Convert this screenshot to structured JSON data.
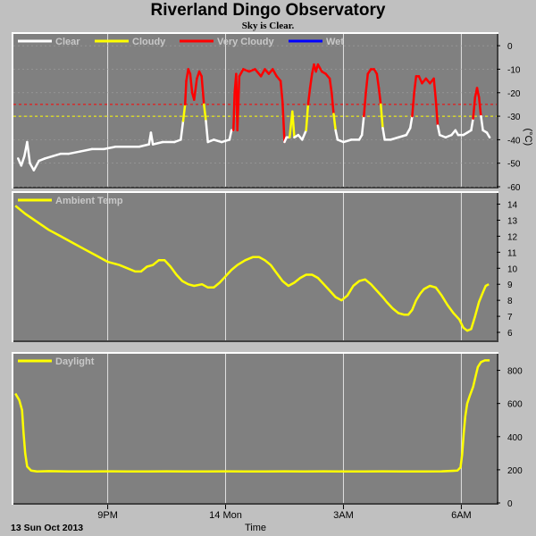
{
  "title": "Riverland Dingo Observatory",
  "subtitle": "Sky is Clear.",
  "colors": {
    "background": "#c0c0c0",
    "plot_background": "#808080",
    "grid": "#e0e0e0",
    "clear": "#ffffff",
    "cloudy": "#ffff00",
    "very_cloudy": "#ff0000",
    "wet": "#0000ff",
    "temperature": "#ffff00",
    "daylight": "#ffff00"
  },
  "x_axis": {
    "label": "Time",
    "date_label": "13 Sun Oct 2013",
    "range_hours": [
      18.6,
      30.9
    ],
    "ticks": [
      {
        "hour": 21,
        "label": "9PM"
      },
      {
        "hour": 24,
        "label": "14 Mon"
      },
      {
        "hour": 27,
        "label": "3AM"
      },
      {
        "hour": 30,
        "label": "6AM"
      }
    ]
  },
  "chart_data": [
    {
      "type": "line",
      "name": "sky",
      "unit": "(°C)",
      "ylim": [
        -60,
        5
      ],
      "yticks": [
        0,
        -10,
        -20,
        -30,
        -40,
        -50,
        -60
      ],
      "legend": [
        "Clear",
        "Cloudy",
        "Very Cloudy",
        "Wet"
      ],
      "thresholds": [
        {
          "value": -25,
          "color": "#ff0000"
        },
        {
          "value": -30,
          "color": "#ffff00"
        }
      ],
      "points": [
        [
          18.72,
          -48
        ],
        [
          18.8,
          -51
        ],
        [
          18.88,
          -47
        ],
        [
          18.95,
          -41
        ],
        [
          19.02,
          -50
        ],
        [
          19.12,
          -53
        ],
        [
          19.25,
          -49
        ],
        [
          19.4,
          -48
        ],
        [
          19.6,
          -47
        ],
        [
          19.8,
          -46
        ],
        [
          20.0,
          -46
        ],
        [
          20.3,
          -45
        ],
        [
          20.6,
          -44
        ],
        [
          20.9,
          -44
        ],
        [
          21.2,
          -43
        ],
        [
          21.5,
          -43
        ],
        [
          21.8,
          -43
        ],
        [
          22.05,
          -42
        ],
        [
          22.1,
          -37
        ],
        [
          22.15,
          -42
        ],
        [
          22.4,
          -41
        ],
        [
          22.7,
          -41
        ],
        [
          22.86,
          -40
        ],
        [
          22.92,
          -32
        ],
        [
          22.97,
          -25
        ],
        [
          23.0,
          -15
        ],
        [
          23.05,
          -10
        ],
        [
          23.1,
          -12
        ],
        [
          23.15,
          -20
        ],
        [
          23.2,
          -23
        ],
        [
          23.27,
          -14
        ],
        [
          23.33,
          -11
        ],
        [
          23.39,
          -13
        ],
        [
          23.45,
          -25
        ],
        [
          23.5,
          -32
        ],
        [
          23.55,
          -41
        ],
        [
          23.7,
          -40
        ],
        [
          23.9,
          -41
        ],
        [
          24.1,
          -40
        ],
        [
          24.15,
          -36
        ],
        [
          24.2,
          -36
        ],
        [
          24.23,
          -20
        ],
        [
          24.27,
          -12
        ],
        [
          24.3,
          -36
        ],
        [
          24.35,
          -13
        ],
        [
          24.45,
          -10
        ],
        [
          24.6,
          -11
        ],
        [
          24.75,
          -10
        ],
        [
          24.9,
          -13
        ],
        [
          25.0,
          -10
        ],
        [
          25.1,
          -12
        ],
        [
          25.2,
          -10
        ],
        [
          25.3,
          -13
        ],
        [
          25.4,
          -15
        ],
        [
          25.45,
          -24
        ],
        [
          25.5,
          -41
        ],
        [
          25.55,
          -39
        ],
        [
          25.63,
          -39
        ],
        [
          25.7,
          -28
        ],
        [
          25.75,
          -39
        ],
        [
          25.85,
          -38
        ],
        [
          25.95,
          -40
        ],
        [
          26.05,
          -36
        ],
        [
          26.1,
          -25
        ],
        [
          26.15,
          -18
        ],
        [
          26.2,
          -12
        ],
        [
          26.25,
          -8
        ],
        [
          26.3,
          -11
        ],
        [
          26.35,
          -8
        ],
        [
          26.45,
          -11
        ],
        [
          26.55,
          -12
        ],
        [
          26.65,
          -14
        ],
        [
          26.7,
          -20
        ],
        [
          26.75,
          -29
        ],
        [
          26.8,
          -36
        ],
        [
          26.85,
          -40
        ],
        [
          27.0,
          -41
        ],
        [
          27.2,
          -40
        ],
        [
          27.4,
          -40
        ],
        [
          27.47,
          -38
        ],
        [
          27.52,
          -30
        ],
        [
          27.57,
          -20
        ],
        [
          27.62,
          -12
        ],
        [
          27.7,
          -10
        ],
        [
          27.78,
          -10
        ],
        [
          27.85,
          -12
        ],
        [
          27.9,
          -18
        ],
        [
          27.95,
          -25
        ],
        [
          28.0,
          -35
        ],
        [
          28.05,
          -40
        ],
        [
          28.2,
          -40
        ],
        [
          28.4,
          -39
        ],
        [
          28.6,
          -38
        ],
        [
          28.7,
          -35
        ],
        [
          28.75,
          -30
        ],
        [
          28.8,
          -20
        ],
        [
          28.85,
          -13
        ],
        [
          28.92,
          -13
        ],
        [
          29.0,
          -16
        ],
        [
          29.1,
          -14
        ],
        [
          29.2,
          -16
        ],
        [
          29.3,
          -14
        ],
        [
          29.35,
          -23
        ],
        [
          29.4,
          -34
        ],
        [
          29.45,
          -38
        ],
        [
          29.6,
          -39
        ],
        [
          29.75,
          -38
        ],
        [
          29.85,
          -36
        ],
        [
          29.92,
          -38
        ],
        [
          30.05,
          -38
        ],
        [
          30.15,
          -37
        ],
        [
          30.25,
          -36
        ],
        [
          30.3,
          -31
        ],
        [
          30.35,
          -22
        ],
        [
          30.4,
          -18
        ],
        [
          30.45,
          -22
        ],
        [
          30.5,
          -30
        ],
        [
          30.55,
          -36
        ],
        [
          30.65,
          -37
        ],
        [
          30.72,
          -39
        ]
      ]
    },
    {
      "type": "line",
      "name": "ambient",
      "legend": [
        "Ambient Temp"
      ],
      "ylim": [
        5.5,
        14.7
      ],
      "yticks": [
        14,
        13,
        12,
        11,
        10,
        9,
        8,
        7,
        6
      ],
      "points": [
        [
          18.65,
          13.9
        ],
        [
          18.9,
          13.4
        ],
        [
          19.2,
          12.9
        ],
        [
          19.5,
          12.4
        ],
        [
          19.8,
          12.0
        ],
        [
          20.1,
          11.6
        ],
        [
          20.4,
          11.2
        ],
        [
          20.7,
          10.8
        ],
        [
          21.0,
          10.4
        ],
        [
          21.3,
          10.2
        ],
        [
          21.5,
          10.0
        ],
        [
          21.7,
          9.8
        ],
        [
          21.85,
          9.8
        ],
        [
          22.0,
          10.1
        ],
        [
          22.15,
          10.2
        ],
        [
          22.3,
          10.5
        ],
        [
          22.45,
          10.5
        ],
        [
          22.6,
          10.1
        ],
        [
          22.75,
          9.6
        ],
        [
          22.9,
          9.2
        ],
        [
          23.05,
          9.0
        ],
        [
          23.2,
          8.9
        ],
        [
          23.4,
          9.0
        ],
        [
          23.55,
          8.8
        ],
        [
          23.7,
          8.8
        ],
        [
          23.85,
          9.1
        ],
        [
          24.0,
          9.5
        ],
        [
          24.15,
          9.9
        ],
        [
          24.3,
          10.2
        ],
        [
          24.5,
          10.5
        ],
        [
          24.7,
          10.7
        ],
        [
          24.85,
          10.7
        ],
        [
          25.0,
          10.5
        ],
        [
          25.15,
          10.2
        ],
        [
          25.3,
          9.7
        ],
        [
          25.45,
          9.2
        ],
        [
          25.6,
          8.9
        ],
        [
          25.75,
          9.1
        ],
        [
          25.9,
          9.4
        ],
        [
          26.05,
          9.6
        ],
        [
          26.2,
          9.6
        ],
        [
          26.35,
          9.4
        ],
        [
          26.5,
          9.0
        ],
        [
          26.65,
          8.6
        ],
        [
          26.8,
          8.2
        ],
        [
          26.95,
          8.0
        ],
        [
          27.1,
          8.3
        ],
        [
          27.25,
          8.9
        ],
        [
          27.4,
          9.2
        ],
        [
          27.55,
          9.3
        ],
        [
          27.7,
          9.0
        ],
        [
          27.85,
          8.6
        ],
        [
          28.0,
          8.2
        ],
        [
          28.1,
          7.9
        ],
        [
          28.25,
          7.5
        ],
        [
          28.4,
          7.2
        ],
        [
          28.55,
          7.1
        ],
        [
          28.65,
          7.1
        ],
        [
          28.75,
          7.4
        ],
        [
          28.85,
          8.0
        ],
        [
          28.95,
          8.4
        ],
        [
          29.05,
          8.7
        ],
        [
          29.2,
          8.9
        ],
        [
          29.35,
          8.8
        ],
        [
          29.5,
          8.3
        ],
        [
          29.65,
          7.7
        ],
        [
          29.8,
          7.2
        ],
        [
          29.95,
          6.8
        ],
        [
          30.05,
          6.3
        ],
        [
          30.15,
          6.1
        ],
        [
          30.25,
          6.2
        ],
        [
          30.35,
          7.0
        ],
        [
          30.45,
          7.9
        ],
        [
          30.55,
          8.5
        ],
        [
          30.62,
          8.9
        ],
        [
          30.7,
          9.0
        ]
      ]
    },
    {
      "type": "line",
      "name": "daylight",
      "legend": [
        "Daylight"
      ],
      "ylim": [
        0,
        900
      ],
      "yticks": [
        800,
        600,
        400,
        200,
        0
      ],
      "points": [
        [
          18.65,
          660
        ],
        [
          18.75,
          620
        ],
        [
          18.82,
          560
        ],
        [
          18.86,
          420
        ],
        [
          18.9,
          300
        ],
        [
          18.95,
          220
        ],
        [
          19.05,
          195
        ],
        [
          19.2,
          190
        ],
        [
          19.5,
          192
        ],
        [
          20.0,
          190
        ],
        [
          20.5,
          190
        ],
        [
          21.0,
          191
        ],
        [
          21.5,
          190
        ],
        [
          22.0,
          190
        ],
        [
          22.5,
          191
        ],
        [
          23.0,
          190
        ],
        [
          23.5,
          190
        ],
        [
          24.0,
          191
        ],
        [
          24.5,
          190
        ],
        [
          25.0,
          190
        ],
        [
          25.5,
          191
        ],
        [
          26.0,
          190
        ],
        [
          26.5,
          191
        ],
        [
          27.0,
          190
        ],
        [
          27.5,
          190
        ],
        [
          28.0,
          191
        ],
        [
          28.5,
          190
        ],
        [
          29.0,
          190
        ],
        [
          29.5,
          191
        ],
        [
          29.9,
          195
        ],
        [
          29.98,
          215
        ],
        [
          30.02,
          290
        ],
        [
          30.06,
          420
        ],
        [
          30.1,
          520
        ],
        [
          30.15,
          600
        ],
        [
          30.22,
          650
        ],
        [
          30.3,
          700
        ],
        [
          30.36,
          760
        ],
        [
          30.42,
          820
        ],
        [
          30.5,
          850
        ],
        [
          30.6,
          860
        ],
        [
          30.72,
          860
        ]
      ]
    }
  ]
}
